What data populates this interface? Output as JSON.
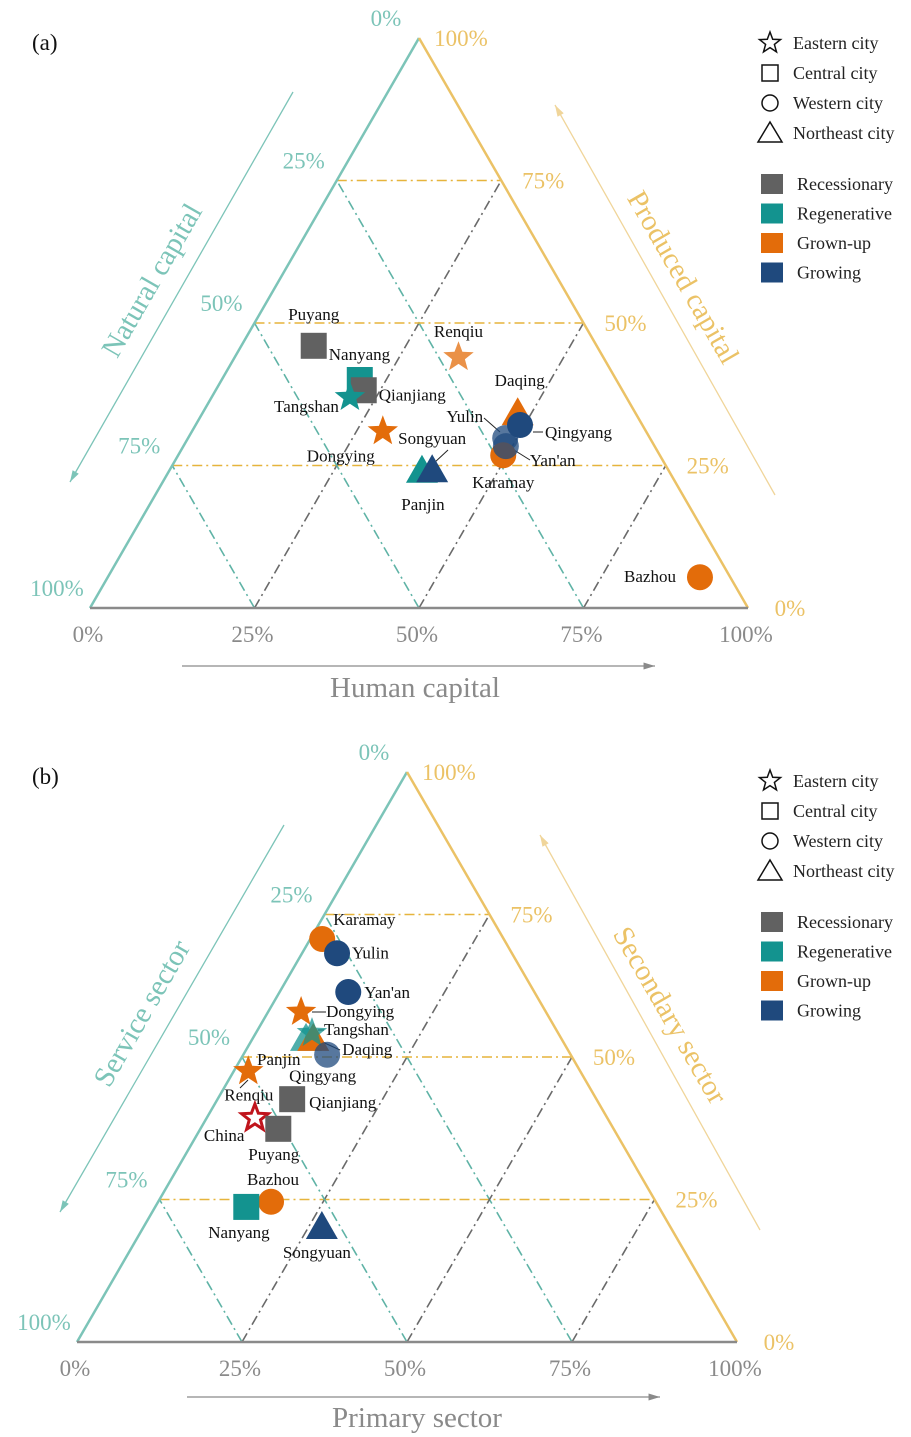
{
  "colors": {
    "Recessionary": "#616161",
    "Regenerative": "#13938f",
    "Grown-up": "#e36c0a",
    "Growing": "#1f497d",
    "left_axis": "#7cc4b8",
    "right_axis": "#ebc266",
    "bottom_axis": "#8a8a8a",
    "china": "#c0141c"
  },
  "legend": {
    "shapes": [
      {
        "shape": "star",
        "label": "Eastern city"
      },
      {
        "shape": "square",
        "label": "Central city"
      },
      {
        "shape": "circle",
        "label": "Western city"
      },
      {
        "shape": "triangle",
        "label": "Northeast city"
      }
    ],
    "types": [
      {
        "type": "Recessionary",
        "label": "Recessionary"
      },
      {
        "type": "Regenerative",
        "label": "Regenerative"
      },
      {
        "type": "Grown-up",
        "label": "Grown-up"
      },
      {
        "type": "Growing",
        "label": "Growing"
      }
    ]
  },
  "chart_data": [
    {
      "type": "scatter",
      "subtype": "ternary",
      "panel": "(a)",
      "bottom_axis": {
        "title": "Human capital",
        "ticks": [
          "0%",
          "25%",
          "50%",
          "75%",
          "100%"
        ]
      },
      "left_axis": {
        "title": "Natural capital",
        "ticks": [
          "0%",
          "25%",
          "50%",
          "75%",
          "100%"
        ]
      },
      "right_axis": {
        "title": "Produced capital",
        "ticks": [
          "0%",
          "25%",
          "50%",
          "75%",
          "100%"
        ]
      },
      "grid": true,
      "points": [
        {
          "name": "Puyang",
          "shape": "square",
          "type": "Recessionary",
          "bottom": 11,
          "left": 43,
          "right": 46
        },
        {
          "name": "Nanyang",
          "shape": "square",
          "type": "Regenerative",
          "bottom": 21,
          "left": 39,
          "right": 40
        },
        {
          "name": "Qianjiang",
          "shape": "square",
          "type": "Recessionary",
          "bottom": 22.5,
          "left": 39.3,
          "right": 38.2
        },
        {
          "name": "Tangshan",
          "shape": "star",
          "type": "Regenerative",
          "bottom": 21,
          "left": 42,
          "right": 37
        },
        {
          "name": "Renqiu",
          "shape": "star",
          "type": "Grown-up",
          "faded": true,
          "bottom": 34,
          "left": 22,
          "right": 44
        },
        {
          "name": "Dongying",
          "shape": "star",
          "type": "Grown-up",
          "bottom": 29,
          "left": 40,
          "right": 31
        },
        {
          "name": "Panjin",
          "shape": "triangle",
          "type": "Regenerative",
          "bottom": 38.5,
          "left": 37.6,
          "right": 23.9
        },
        {
          "name": "Songyuan",
          "shape": "triangle",
          "type": "Growing",
          "bottom": 40,
          "left": 36,
          "right": 24
        },
        {
          "name": "Daqing",
          "shape": "triangle",
          "type": "Grown-up",
          "bottom": 48,
          "left": 18,
          "right": 34
        },
        {
          "name": "Yulin",
          "shape": "circle",
          "type": "Growing",
          "faded": true,
          "bottom": 48.2,
          "left": 22,
          "right": 29.8
        },
        {
          "name": "Karamay",
          "shape": "circle",
          "type": "Grown-up",
          "bottom": 49.4,
          "left": 23.8,
          "right": 26.8
        },
        {
          "name": "Yan'an",
          "shape": "circle",
          "type": "Growing",
          "faded": true,
          "bottom": 49,
          "left": 22.6,
          "right": 28.4
        },
        {
          "name": "Qingyang",
          "shape": "circle",
          "type": "Growing",
          "bottom": 49.3,
          "left": 18.6,
          "right": 32.1
        },
        {
          "name": "Bazhou",
          "shape": "circle",
          "type": "Grown-up",
          "bottom": 90,
          "left": 4.6,
          "right": 5.4
        }
      ]
    },
    {
      "type": "scatter",
      "subtype": "ternary",
      "panel": "(b)",
      "bottom_axis": {
        "title": "Primary sector",
        "ticks": [
          "0%",
          "25%",
          "50%",
          "75%",
          "100%"
        ]
      },
      "left_axis": {
        "title": "Service sector",
        "ticks": [
          "0%",
          "25%",
          "50%",
          "75%",
          "100%"
        ]
      },
      "right_axis": {
        "title": "Secondary sector",
        "ticks": [
          "0%",
          "25%",
          "50%",
          "75%",
          "100%"
        ]
      },
      "grid": true,
      "points": [
        {
          "name": "Karamay",
          "shape": "circle",
          "type": "Grown-up",
          "bottom": 1.8,
          "left": 27.5,
          "right": 70.7
        },
        {
          "name": "Yulin",
          "shape": "circle",
          "type": "Growing",
          "bottom": 5.3,
          "left": 26.5,
          "right": 68.2
        },
        {
          "name": "Yan'an",
          "shape": "circle",
          "type": "Growing",
          "bottom": 10.4,
          "left": 28.2,
          "right": 61.4
        },
        {
          "name": "Dongying",
          "shape": "star",
          "type": "Grown-up",
          "bottom": 5,
          "left": 37.1,
          "right": 57.9
        },
        {
          "name": "Panjin",
          "shape": "triangle",
          "type": "Regenerative",
          "faded": true,
          "bottom": 8.2,
          "left": 38.8,
          "right": 53
        },
        {
          "name": "Daqing",
          "shape": "triangle",
          "type": "Grown-up",
          "bottom": 9.3,
          "left": 37.7,
          "right": 53
        },
        {
          "name": "Tangshan",
          "shape": "star",
          "type": "Regenerative",
          "faded": true,
          "bottom": 8.5,
          "left": 37.3,
          "right": 54.2
        },
        {
          "name": "Qingyang",
          "shape": "circle",
          "type": "Growing",
          "faded": true,
          "bottom": 12.7,
          "left": 36.9,
          "right": 50.4
        },
        {
          "name": "Renqiu",
          "shape": "star",
          "type": "Grown-up",
          "bottom": 2.2,
          "left": 50.3,
          "right": 47.5
        },
        {
          "name": "Qianjiang",
          "shape": "square",
          "type": "Recessionary",
          "bottom": 11.3,
          "left": 46.1,
          "right": 42.6
        },
        {
          "name": "China",
          "shape": "star-outline",
          "type": "China",
          "bottom": 7.3,
          "left": 53.4,
          "right": 39.3
        },
        {
          "name": "Puyang",
          "shape": "square",
          "type": "Recessionary",
          "bottom": 11.8,
          "left": 50.8,
          "right": 37.4
        },
        {
          "name": "Bazhou",
          "shape": "circle",
          "type": "Grown-up",
          "bottom": 17.1,
          "left": 58.3,
          "right": 24.6
        },
        {
          "name": "Nanyang",
          "shape": "square",
          "type": "Regenerative",
          "bottom": 13.8,
          "left": 62.5,
          "right": 23.7
        },
        {
          "name": "Songyuan",
          "shape": "triangle",
          "type": "Growing",
          "bottom": 27.1,
          "left": 52.9,
          "right": 20
        }
      ]
    }
  ]
}
